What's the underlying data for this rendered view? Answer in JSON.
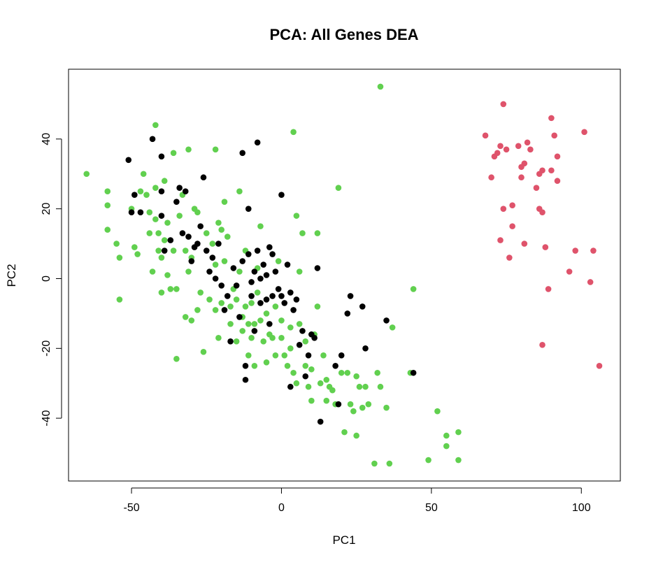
{
  "chart_data": {
    "type": "scatter",
    "title": "PCA: All Genes DEA",
    "xlabel": "PC1",
    "ylabel": "PC2",
    "xlim": [
      -71,
      113
    ],
    "ylim": [
      -58,
      60
    ],
    "x_ticks": [
      -50,
      0,
      50,
      100
    ],
    "y_ticks": [
      -40,
      -20,
      0,
      20,
      40
    ],
    "x_tick_labels": [
      "-50",
      "0",
      "50",
      "100"
    ],
    "y_tick_labels": [
      "-40",
      "-20",
      "0",
      "20",
      "40"
    ],
    "grid": false,
    "legend": "none",
    "series": [
      {
        "color": "#61D04F",
        "points": [
          [
            -65,
            30
          ],
          [
            -58,
            25
          ],
          [
            -58,
            21
          ],
          [
            -58,
            14
          ],
          [
            -55,
            10
          ],
          [
            -54,
            6
          ],
          [
            -54,
            -6
          ],
          [
            -50,
            20
          ],
          [
            -49,
            9
          ],
          [
            -48,
            7
          ],
          [
            -47,
            25
          ],
          [
            -46,
            30
          ],
          [
            -45,
            24
          ],
          [
            -44,
            19
          ],
          [
            -44,
            13
          ],
          [
            -43,
            2
          ],
          [
            -42,
            26
          ],
          [
            -42,
            44
          ],
          [
            -42,
            17
          ],
          [
            -41,
            13
          ],
          [
            -41,
            8
          ],
          [
            -40,
            6
          ],
          [
            -40,
            -4
          ],
          [
            -39,
            11
          ],
          [
            -39,
            28
          ],
          [
            -38,
            1
          ],
          [
            -38,
            16
          ],
          [
            -37,
            -3
          ],
          [
            -36,
            36
          ],
          [
            -36,
            8
          ],
          [
            -35,
            -3
          ],
          [
            -35,
            -23
          ],
          [
            -34,
            18
          ],
          [
            -33,
            24
          ],
          [
            -32,
            -11
          ],
          [
            -32,
            8
          ],
          [
            -31,
            2
          ],
          [
            -31,
            37
          ],
          [
            -30,
            -12
          ],
          [
            -30,
            6
          ],
          [
            -29,
            20
          ],
          [
            -28,
            19
          ],
          [
            -28,
            -9
          ],
          [
            -27,
            -4
          ],
          [
            -26,
            -21
          ],
          [
            -25,
            13
          ],
          [
            -24,
            -6
          ],
          [
            -23,
            10
          ],
          [
            -22,
            -9
          ],
          [
            -22,
            4
          ],
          [
            -22,
            37
          ],
          [
            -21,
            16
          ],
          [
            -21,
            -17
          ],
          [
            -20,
            -7
          ],
          [
            -20,
            14
          ],
          [
            -19,
            22
          ],
          [
            -19,
            5
          ],
          [
            -18,
            12
          ],
          [
            -17,
            -13
          ],
          [
            -17,
            -8
          ],
          [
            -16,
            -3
          ],
          [
            -15,
            -6
          ],
          [
            -15,
            -18
          ],
          [
            -14,
            25
          ],
          [
            -14,
            2
          ],
          [
            -13,
            -15
          ],
          [
            -13,
            -11
          ],
          [
            -12,
            -8
          ],
          [
            -12,
            8
          ],
          [
            -11,
            -22
          ],
          [
            -11,
            -13
          ],
          [
            -10,
            -7
          ],
          [
            -10,
            -17
          ],
          [
            -9,
            -25
          ],
          [
            -9,
            -13
          ],
          [
            -8,
            -4
          ],
          [
            -8,
            3
          ],
          [
            -7,
            15
          ],
          [
            -7,
            -12
          ],
          [
            -6,
            -18
          ],
          [
            -5,
            -24
          ],
          [
            -5,
            -10
          ],
          [
            -4,
            -16
          ],
          [
            -3,
            -17
          ],
          [
            -2,
            -8
          ],
          [
            -2,
            -22
          ],
          [
            -1,
            5
          ],
          [
            0,
            -12
          ],
          [
            0,
            -17
          ],
          [
            1,
            -22
          ],
          [
            2,
            -25
          ],
          [
            3,
            -20
          ],
          [
            3,
            -14
          ],
          [
            4,
            42
          ],
          [
            4,
            -27
          ],
          [
            5,
            18
          ],
          [
            5,
            -30
          ],
          [
            6,
            -13
          ],
          [
            6,
            2
          ],
          [
            7,
            13
          ],
          [
            8,
            -18
          ],
          [
            8,
            -25
          ],
          [
            9,
            -31
          ],
          [
            10,
            -26
          ],
          [
            10,
            -35
          ],
          [
            11,
            -16
          ],
          [
            12,
            13
          ],
          [
            12,
            -8
          ],
          [
            13,
            -30
          ],
          [
            14,
            -22
          ],
          [
            15,
            -29
          ],
          [
            15,
            -35
          ],
          [
            16,
            -31
          ],
          [
            17,
            -32
          ],
          [
            18,
            -36
          ],
          [
            19,
            26
          ],
          [
            20,
            -27
          ],
          [
            21,
            -44
          ],
          [
            22,
            -27
          ],
          [
            23,
            -36
          ],
          [
            24,
            -38
          ],
          [
            25,
            -28
          ],
          [
            25,
            -45
          ],
          [
            26,
            -31
          ],
          [
            27,
            -37
          ],
          [
            28,
            -31
          ],
          [
            29,
            -36
          ],
          [
            31,
            -53
          ],
          [
            32,
            -27
          ],
          [
            33,
            -31
          ],
          [
            33,
            55
          ],
          [
            35,
            -37
          ],
          [
            36,
            -53
          ],
          [
            37,
            -14
          ],
          [
            43,
            -27
          ],
          [
            44,
            -3
          ],
          [
            49,
            -52
          ],
          [
            52,
            -38
          ],
          [
            55,
            -45
          ],
          [
            55,
            -48
          ],
          [
            59,
            -44
          ],
          [
            59,
            -52
          ]
        ]
      },
      {
        "color": "#000000",
        "points": [
          [
            -51,
            34
          ],
          [
            -50,
            19
          ],
          [
            -49,
            24
          ],
          [
            -47,
            19
          ],
          [
            -43,
            40
          ],
          [
            -40,
            35
          ],
          [
            -40,
            18
          ],
          [
            -40,
            25
          ],
          [
            -39,
            8
          ],
          [
            -37,
            11
          ],
          [
            -35,
            22
          ],
          [
            -34,
            26
          ],
          [
            -33,
            13
          ],
          [
            -32,
            25
          ],
          [
            -31,
            12
          ],
          [
            -30,
            5
          ],
          [
            -29,
            9
          ],
          [
            -28,
            10
          ],
          [
            -27,
            15
          ],
          [
            -26,
            29
          ],
          [
            -25,
            8
          ],
          [
            -24,
            2
          ],
          [
            -23,
            6
          ],
          [
            -22,
            0
          ],
          [
            -21,
            10
          ],
          [
            -20,
            -2
          ],
          [
            -19,
            -9
          ],
          [
            -18,
            -5
          ],
          [
            -17,
            -18
          ],
          [
            -16,
            3
          ],
          [
            -15,
            -2
          ],
          [
            -14,
            -11
          ],
          [
            -13,
            5
          ],
          [
            -13,
            36
          ],
          [
            -12,
            -29
          ],
          [
            -12,
            -25
          ],
          [
            -11,
            7
          ],
          [
            -11,
            20
          ],
          [
            -10,
            -1
          ],
          [
            -10,
            -5
          ],
          [
            -9,
            2
          ],
          [
            -9,
            -15
          ],
          [
            -8,
            39
          ],
          [
            -8,
            8
          ],
          [
            -7,
            0
          ],
          [
            -7,
            -7
          ],
          [
            -6,
            4
          ],
          [
            -5,
            1
          ],
          [
            -5,
            -6
          ],
          [
            -4,
            9
          ],
          [
            -4,
            -13
          ],
          [
            -3,
            -5
          ],
          [
            -3,
            7
          ],
          [
            -2,
            2
          ],
          [
            -1,
            -3
          ],
          [
            0,
            24
          ],
          [
            0,
            -5
          ],
          [
            1,
            -7
          ],
          [
            2,
            4
          ],
          [
            3,
            -4
          ],
          [
            3,
            -31
          ],
          [
            4,
            -9
          ],
          [
            5,
            -6
          ],
          [
            6,
            -19
          ],
          [
            7,
            -15
          ],
          [
            8,
            -28
          ],
          [
            9,
            -22
          ],
          [
            10,
            -16
          ],
          [
            11,
            -17
          ],
          [
            12,
            3
          ],
          [
            13,
            -41
          ],
          [
            18,
            -25
          ],
          [
            19,
            -36
          ],
          [
            20,
            -22
          ],
          [
            22,
            -10
          ],
          [
            23,
            -5
          ],
          [
            27,
            -8
          ],
          [
            28,
            -20
          ],
          [
            35,
            -12
          ],
          [
            44,
            -27
          ]
        ]
      },
      {
        "color": "#DF536B",
        "points": [
          [
            68,
            41
          ],
          [
            70,
            29
          ],
          [
            71,
            35
          ],
          [
            72,
            36
          ],
          [
            73,
            38
          ],
          [
            73,
            11
          ],
          [
            74,
            50
          ],
          [
            74,
            20
          ],
          [
            75,
            37
          ],
          [
            76,
            6
          ],
          [
            77,
            15
          ],
          [
            77,
            21
          ],
          [
            79,
            38
          ],
          [
            80,
            32
          ],
          [
            80,
            29
          ],
          [
            81,
            33
          ],
          [
            81,
            10
          ],
          [
            82,
            39
          ],
          [
            83,
            37
          ],
          [
            85,
            26
          ],
          [
            86,
            20
          ],
          [
            86,
            30
          ],
          [
            87,
            31
          ],
          [
            87,
            19
          ],
          [
            88,
            9
          ],
          [
            89,
            -3
          ],
          [
            90,
            46
          ],
          [
            90,
            31
          ],
          [
            91,
            41
          ],
          [
            92,
            28
          ],
          [
            92,
            35
          ],
          [
            96,
            2
          ],
          [
            98,
            8
          ],
          [
            101,
            42
          ],
          [
            103,
            -1
          ],
          [
            104,
            8
          ],
          [
            106,
            -25
          ],
          [
            87,
            -19
          ]
        ]
      }
    ]
  }
}
